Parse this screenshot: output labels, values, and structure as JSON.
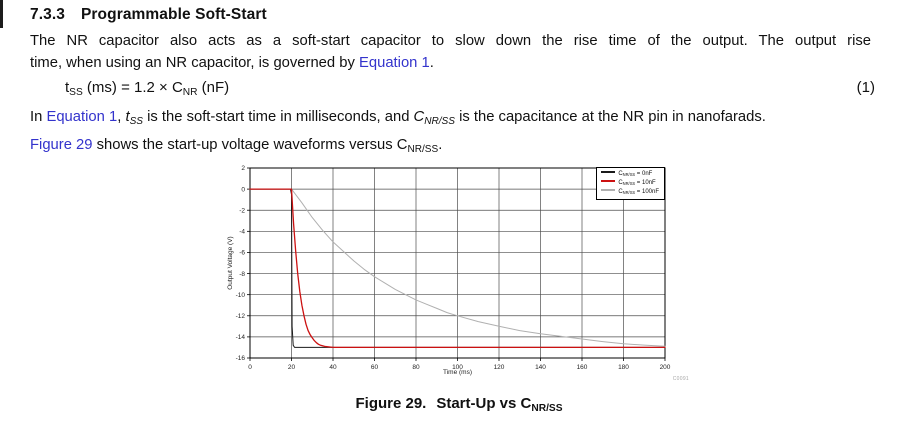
{
  "heading": {
    "number": "7.3.3",
    "title": "Programmable Soft-Start"
  },
  "paragraph1": {
    "line1": "The NR capacitor also acts as a soft-start capacitor to slow down the rise time of the output. The output rise",
    "line2_before_link": "time, when using an NR capacitor, is governed by ",
    "link": "Equation 1",
    "line2_after_link": "."
  },
  "equation": {
    "var": "t",
    "var_sub": "SS",
    "mid": " (ms) = 1.2 × C",
    "cap_sub": "NR",
    "tail": " (nF)",
    "number": "(1)"
  },
  "paragraph2": {
    "text1": "In ",
    "link": "Equation 1",
    "text2": ", ",
    "var": "t",
    "var_sub": "SS",
    "text3": " is the soft-start time in milliseconds, and ",
    "cap": "C",
    "cap_sub": "NR/SS",
    "text4": " is the capacitance at the NR pin in nanofarads."
  },
  "paragraph3": {
    "link": "Figure 29",
    "text1": " shows the start-up voltage waveforms versus C",
    "sub": "NR/SS",
    "text2": "."
  },
  "figure": {
    "caption_prefix": "Figure 29.",
    "caption_main": "Start-Up vs C",
    "caption_sub": "NR/SS",
    "watermark": "C0091"
  },
  "chart_data": {
    "type": "line",
    "title": "",
    "xlabel": "Time (ms)",
    "ylabel": "Output Voltage (V)",
    "xlim": [
      0,
      200
    ],
    "ylim": [
      -16,
      2
    ],
    "xticks": [
      0,
      20,
      40,
      60,
      80,
      100,
      120,
      140,
      160,
      180,
      200
    ],
    "yticks": [
      2,
      0,
      -2,
      -4,
      -6,
      -8,
      -10,
      -12,
      -14,
      -16
    ],
    "grid": true,
    "grid_color": "#4d4d4d",
    "frame_color": "#000000",
    "legend_position": "top-right",
    "series": [
      {
        "id": "0nF",
        "name": "CNR/SS = 0nF",
        "legend": {
          "prefix": "C",
          "sub": "NR/SS",
          "suffix": " = 0nF"
        },
        "color": "#1a1a1a",
        "width": 1,
        "draw_order": 2,
        "points": [
          [
            0,
            0
          ],
          [
            19.5,
            0
          ],
          [
            20,
            -0.5
          ],
          [
            20.3,
            -13
          ],
          [
            20.8,
            -14.8
          ],
          [
            21.5,
            -15
          ],
          [
            200,
            -15
          ]
        ]
      },
      {
        "id": "10nF",
        "name": "CNR/SS = 10nF",
        "legend": {
          "prefix": "C",
          "sub": "NR/SS",
          "suffix": " = 10nF"
        },
        "color": "#cc1111",
        "width": 1.3,
        "draw_order": 3,
        "points": [
          [
            0,
            0
          ],
          [
            20,
            0
          ],
          [
            21,
            -3.3
          ],
          [
            22,
            -5.9
          ],
          [
            23,
            -8.0
          ],
          [
            24,
            -9.7
          ],
          [
            25,
            -11.0
          ],
          [
            26,
            -12.0
          ],
          [
            27,
            -12.8
          ],
          [
            28,
            -13.4
          ],
          [
            29,
            -13.8
          ],
          [
            30,
            -14.1
          ],
          [
            31,
            -14.35
          ],
          [
            32,
            -14.55
          ],
          [
            33,
            -14.7
          ],
          [
            34,
            -14.8
          ],
          [
            36,
            -14.9
          ],
          [
            40,
            -15
          ],
          [
            200,
            -15
          ]
        ]
      },
      {
        "id": "100nF",
        "name": "CNR/SS = 100nF",
        "legend": {
          "prefix": "C",
          "sub": "NR/SS",
          "suffix": " = 100nF"
        },
        "color": "#b0b0b0",
        "width": 1,
        "draw_order": 1,
        "points": [
          [
            0,
            0
          ],
          [
            20,
            0
          ],
          [
            25,
            -1.3
          ],
          [
            30,
            -2.7
          ],
          [
            35,
            -3.9
          ],
          [
            40,
            -5.0
          ],
          [
            45,
            -5.9
          ],
          [
            50,
            -6.8
          ],
          [
            55,
            -7.6
          ],
          [
            60,
            -8.3
          ],
          [
            65,
            -8.9
          ],
          [
            70,
            -9.5
          ],
          [
            75,
            -10.0
          ],
          [
            80,
            -10.5
          ],
          [
            85,
            -10.9
          ],
          [
            90,
            -11.3
          ],
          [
            95,
            -11.7
          ],
          [
            100,
            -12.0
          ],
          [
            110,
            -12.55
          ],
          [
            120,
            -13.0
          ],
          [
            130,
            -13.4
          ],
          [
            140,
            -13.7
          ],
          [
            150,
            -13.95
          ],
          [
            160,
            -14.2
          ],
          [
            170,
            -14.45
          ],
          [
            180,
            -14.65
          ],
          [
            190,
            -14.78
          ],
          [
            200,
            -14.88
          ]
        ]
      }
    ]
  }
}
